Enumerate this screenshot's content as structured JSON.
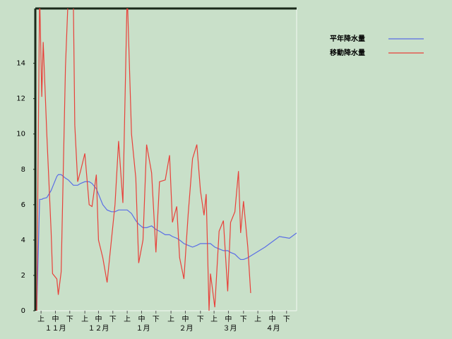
{
  "chart_data": {
    "type": "line",
    "x": [
      1,
      3,
      4.5,
      5.5,
      8,
      11,
      12,
      15,
      16,
      18,
      21,
      23,
      26.5,
      27.5,
      29.5,
      31.5,
      34.5,
      37.5,
      39.5,
      42.5,
      44,
      47,
      50,
      53,
      55.5,
      58,
      61,
      64,
      67,
      70,
      72,
      75,
      77.5,
      81,
      84,
      86.5,
      90.5,
      93.5,
      95.5,
      98.5,
      100.5,
      103.5,
      106.5,
      109.5,
      112.5,
      115,
      117.5,
      119,
      121,
      122,
      125,
      128,
      131,
      134,
      136,
      139,
      141.5,
      143,
      145,
      148,
      150,
      160,
      170,
      177,
      182
    ],
    "series": [
      {
        "name": "平年降水量",
        "color": "#5a6ee6",
        "values": [
          0,
          6.3,
          6.3,
          6.35,
          6.4,
          6.8,
          7.0,
          7.6,
          7.7,
          7.7,
          7.5,
          7.4,
          7.1,
          7.1,
          7.1,
          7.2,
          7.3,
          7.3,
          7.2,
          6.9,
          6.6,
          6.0,
          5.7,
          5.6,
          5.6,
          5.7,
          5.7,
          5.7,
          5.5,
          5.1,
          4.9,
          4.7,
          4.7,
          4.8,
          4.6,
          4.5,
          4.3,
          4.3,
          4.2,
          4.1,
          4.0,
          3.8,
          3.7,
          3.6,
          3.7,
          3.8,
          3.8,
          3.8,
          3.8,
          3.8,
          3.6,
          3.5,
          3.4,
          3.4,
          3.3,
          3.2,
          3.0,
          2.9,
          2.9,
          3.0,
          3.1,
          3.6,
          4.2,
          4.1,
          4.4
        ]
      },
      {
        "name": "移動降水量",
        "color": "#e8413a",
        "values": [
          0,
          18,
          12.1,
          15.2,
          10,
          4.5,
          2.1,
          1.8,
          0.9,
          2.2,
          13.8,
          18,
          17.5,
          10.5,
          7.3,
          7.9,
          8.9,
          6,
          5.9,
          7.7,
          4,
          3,
          1.6,
          4,
          6,
          9.6,
          6.1,
          18,
          10,
          7.5,
          2.7,
          4,
          9.4,
          7.8,
          3.3,
          7.3,
          7.4,
          8.8,
          5,
          5.9,
          3,
          1.8,
          5.5,
          8.6,
          9.4,
          6.8,
          5.4,
          6.6,
          0,
          2.1,
          0.2,
          4.5,
          5.1,
          1.1,
          5,
          5.6,
          7.9,
          4.4,
          6.2,
          3.6,
          1,
          null,
          null,
          null,
          null
        ]
      }
    ],
    "xlim": [
      0,
      182
    ],
    "xticks": [
      {
        "value": 4,
        "label": "上"
      },
      {
        "value": 14,
        "label": "中"
      },
      {
        "value": 24,
        "label": "下"
      },
      {
        "value": 34.5,
        "label": "上"
      },
      {
        "value": 44,
        "label": "中"
      },
      {
        "value": 54,
        "label": "下"
      },
      {
        "value": 64,
        "label": "上"
      },
      {
        "value": 74,
        "label": "中"
      },
      {
        "value": 84,
        "label": "下"
      },
      {
        "value": 94.5,
        "label": "上"
      },
      {
        "value": 104.5,
        "label": "中"
      },
      {
        "value": 115,
        "label": "下"
      },
      {
        "value": 124.5,
        "label": "上"
      },
      {
        "value": 134.5,
        "label": "中"
      },
      {
        "value": 145,
        "label": "下"
      },
      {
        "value": 155,
        "label": "上"
      },
      {
        "value": 165,
        "label": "中"
      },
      {
        "value": 175,
        "label": "下"
      }
    ],
    "month_ticks": [
      {
        "value": 14,
        "label": "１１月"
      },
      {
        "value": 44,
        "label": "１２月"
      },
      {
        "value": 75,
        "label": "１月"
      },
      {
        "value": 105,
        "label": "２月"
      },
      {
        "value": 135.5,
        "label": "３月"
      },
      {
        "value": 165.5,
        "label": "４月"
      }
    ],
    "ylim": [
      0,
      17.1
    ],
    "yticks": [
      0,
      2,
      4,
      6,
      8,
      10,
      12,
      14
    ]
  }
}
